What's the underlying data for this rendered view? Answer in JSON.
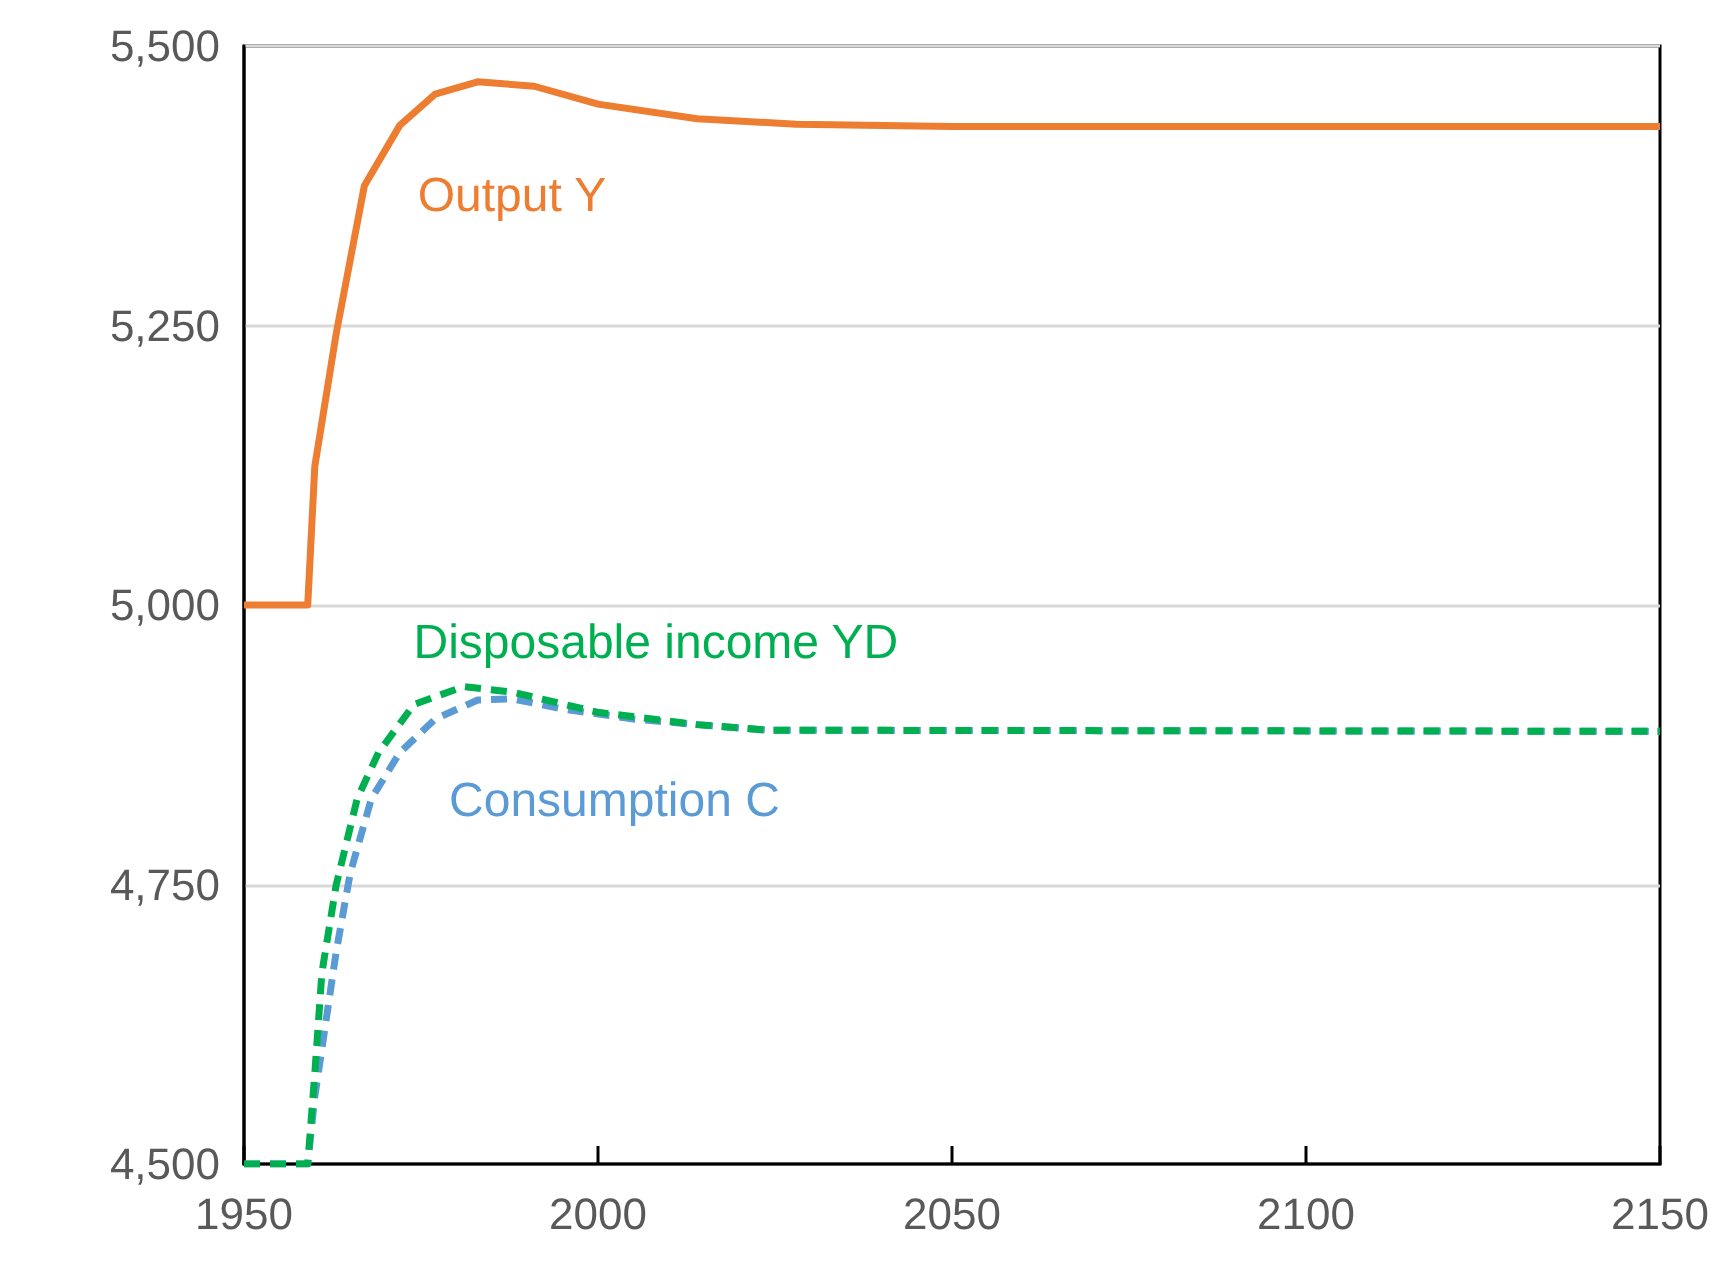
{
  "chart_data": {
    "type": "line",
    "series": [
      {
        "name": "Output Y",
        "color": "#ed7d31",
        "line_style": "solid",
        "x": [
          1950,
          1959,
          1960,
          1963,
          1967,
          1972,
          1977,
          1983,
          1991,
          2000,
          2014,
          2028,
          2050,
          2150
        ],
        "values": [
          5000,
          5000,
          5124,
          5242,
          5375,
          5429,
          5457,
          5468,
          5464,
          5448,
          5435,
          5430,
          5428,
          5428
        ]
      },
      {
        "name": "Consumption C",
        "color": "#5b9bd5",
        "line_style": "dashed",
        "x": [
          1950,
          1959,
          1960,
          1963,
          1965,
          1968,
          1972,
          1977,
          1983,
          1988,
          1995,
          2005,
          2014,
          2024,
          2150
        ],
        "values": [
          4500,
          4500,
          4560,
          4689,
          4760,
          4827,
          4868,
          4898,
          4915,
          4916,
          4907,
          4898,
          4893,
          4888,
          4887
        ]
      },
      {
        "name": "Disposable income YD",
        "color": "#00b050",
        "line_style": "dashed",
        "x": [
          1950,
          1959,
          1960,
          1961,
          1963,
          1966,
          1969,
          1974,
          1981,
          1988,
          2000,
          2014,
          2024,
          2150
        ],
        "values": [
          4500,
          4500,
          4581,
          4671,
          4749,
          4827,
          4868,
          4911,
          4927,
          4922,
          4904,
          4893,
          4888,
          4887
        ]
      }
    ],
    "xlim": [
      1950,
      2150
    ],
    "xticks": [
      1950,
      2000,
      2050,
      2100,
      2150
    ],
    "ylim": [
      4500,
      5500
    ],
    "yticks": [
      {
        "value": 4500,
        "label": "4,500"
      },
      {
        "value": 4750,
        "label": "4,750"
      },
      {
        "value": 5000,
        "label": "5,000"
      },
      {
        "value": 5250,
        "label": "5,250"
      },
      {
        "value": 5500,
        "label": "5,500"
      }
    ],
    "grid": "y",
    "legend": false,
    "marker": "none"
  }
}
